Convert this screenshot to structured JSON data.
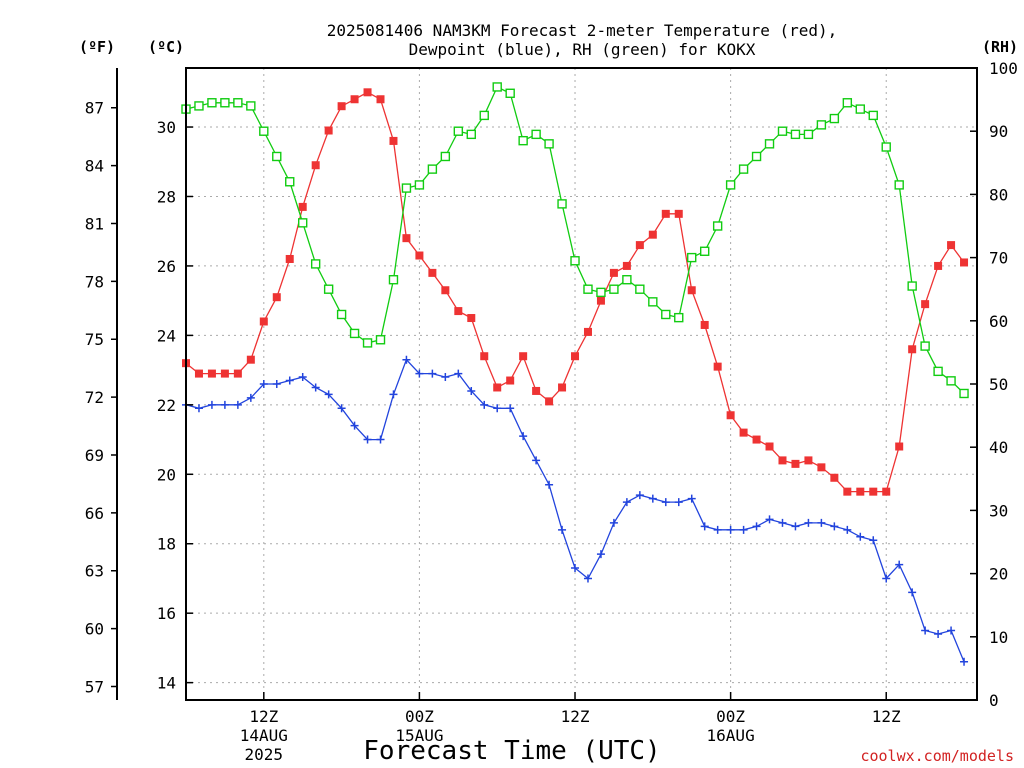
{
  "chart_data": {
    "type": "line",
    "title": "2025081406 NAM3KM Forecast 2-meter Temperature (red),",
    "subtitle": "Dewpoint (blue), RH (green) for KOKX",
    "xlabel": "Forecast Time (UTC)",
    "credit": "coolwx.com/models",
    "units": {
      "fahrenheit": "(ºF)",
      "celsius": "(ºC)",
      "rh": "(RH)"
    },
    "colors": {
      "temperature": "#ee3333",
      "dewpoint": "#2244dd",
      "rh": "#11cc11",
      "grid": "#aaaaaa"
    },
    "xlim": [
      0,
      61
    ],
    "ylim_c": [
      13.5,
      31.7
    ],
    "ylim_rh": [
      0,
      100
    ],
    "grid": true,
    "x_ticks": [
      {
        "x": 6,
        "lines": [
          "12Z",
          "14AUG",
          "2025"
        ]
      },
      {
        "x": 18,
        "lines": [
          "00Z",
          "15AUG"
        ]
      },
      {
        "x": 30,
        "lines": [
          "12Z"
        ]
      },
      {
        "x": 42,
        "lines": [
          "00Z",
          "16AUG"
        ]
      },
      {
        "x": 54,
        "lines": [
          "12Z"
        ]
      }
    ],
    "y_ticks_c": [
      "14",
      "16",
      "18",
      "20",
      "22",
      "24",
      "26",
      "28",
      "30"
    ],
    "y_ticks_f": [
      "57",
      "60",
      "63",
      "66",
      "69",
      "72",
      "75",
      "78",
      "81",
      "84",
      "87"
    ],
    "y_ticks_rh": [
      "0",
      "10",
      "20",
      "30",
      "40",
      "50",
      "60",
      "70",
      "80",
      "90",
      "100"
    ],
    "series": [
      {
        "key": "temperature",
        "marker": "filled-square",
        "values": [
          23.2,
          22.9,
          22.9,
          22.9,
          22.9,
          23.3,
          24.4,
          25.1,
          26.2,
          27.7,
          28.9,
          29.9,
          30.6,
          30.8,
          31.0,
          30.8,
          29.6,
          26.8,
          26.3,
          25.8,
          25.3,
          24.7,
          24.5,
          23.4,
          22.5,
          22.7,
          23.4,
          22.4,
          22.1,
          22.5,
          23.4,
          24.1,
          25.0,
          25.8,
          26.0,
          26.6,
          26.9,
          27.5,
          27.5,
          25.3,
          24.3,
          23.1,
          21.7,
          21.2,
          21.0,
          20.8,
          20.4,
          20.3,
          20.4,
          20.2,
          19.9,
          19.5,
          19.5,
          19.5,
          19.5,
          20.8,
          23.6,
          24.9,
          26.0,
          26.6,
          26.1
        ]
      },
      {
        "key": "dewpoint",
        "marker": "plus",
        "values": [
          22.0,
          21.9,
          22.0,
          22.0,
          22.0,
          22.2,
          22.6,
          22.6,
          22.7,
          22.8,
          22.5,
          22.3,
          21.9,
          21.4,
          21.0,
          21.0,
          22.3,
          23.3,
          22.9,
          22.9,
          22.8,
          22.9,
          22.4,
          22.0,
          21.9,
          21.9,
          21.1,
          20.4,
          19.7,
          18.4,
          17.3,
          17.0,
          17.7,
          18.6,
          19.2,
          19.4,
          19.3,
          19.2,
          19.2,
          19.3,
          18.5,
          18.4,
          18.4,
          18.4,
          18.5,
          18.7,
          18.6,
          18.5,
          18.6,
          18.6,
          18.5,
          18.4,
          18.2,
          18.1,
          17.0,
          17.4,
          16.6,
          15.5,
          15.4,
          15.5,
          14.6
        ]
      },
      {
        "key": "rh",
        "marker": "open-square",
        "values": [
          93.5,
          94,
          94.5,
          94.5,
          94.5,
          94,
          90,
          86,
          82,
          75.5,
          69,
          65,
          61,
          58,
          56.5,
          57,
          66.5,
          81,
          81.5,
          84,
          86,
          90,
          89.5,
          92.5,
          97,
          96,
          88.5,
          89.5,
          88,
          78.5,
          69.5,
          65,
          64.5,
          65,
          66.5,
          65,
          63,
          61,
          60.5,
          70,
          71,
          75,
          81.5,
          84,
          86,
          88,
          90,
          89.5,
          89.5,
          91,
          92,
          94.5,
          93.5,
          92.5,
          87.5,
          81.5,
          65.5,
          56,
          52,
          50.5,
          48.5
        ]
      }
    ]
  }
}
